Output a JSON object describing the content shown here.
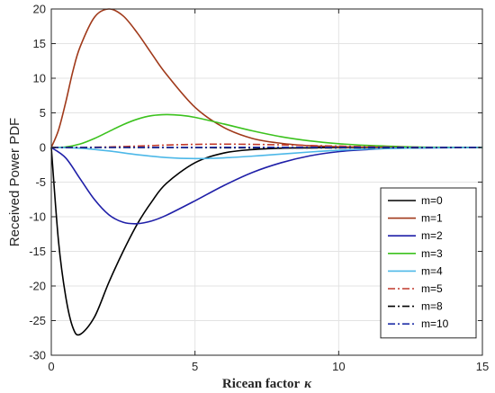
{
  "chart_data": {
    "type": "line",
    "title": "",
    "xlabel": "Ricean factor",
    "xlabel_symbol": "κ",
    "ylabel": "Received Power PDF",
    "xlim": [
      0,
      15
    ],
    "ylim": [
      -30,
      20
    ],
    "xticks": [
      0,
      5,
      10,
      15
    ],
    "yticks": [
      -30,
      -25,
      -20,
      -15,
      -10,
      -5,
      0,
      5,
      10,
      15,
      20
    ],
    "grid": true,
    "legend_position": "bottom-right",
    "series": [
      {
        "name": "m=0",
        "color": "#000000",
        "dash": "solid",
        "x": [
          0,
          0.25,
          0.5,
          0.75,
          1,
          1.5,
          2,
          2.5,
          3,
          3.5,
          4,
          5,
          6,
          7,
          8,
          9,
          10,
          12,
          15
        ],
        "y": [
          0,
          -13.5,
          -21.5,
          -26,
          -27,
          -24.5,
          -19.5,
          -15,
          -11,
          -7.8,
          -5.2,
          -2.2,
          -0.8,
          -0.3,
          -0.1,
          -0.05,
          0,
          0,
          0
        ]
      },
      {
        "name": "m=1",
        "color": "#a0391a",
        "dash": "solid",
        "x": [
          0,
          0.25,
          0.5,
          0.75,
          1,
          1.5,
          2,
          2.5,
          3,
          3.5,
          4,
          5,
          6,
          7,
          8,
          9,
          10,
          12,
          15
        ],
        "y": [
          0,
          2.5,
          6.5,
          11,
          14.5,
          18.8,
          20,
          19,
          16.5,
          13.5,
          10.6,
          5.8,
          2.9,
          1.3,
          0.6,
          0.25,
          0.1,
          0,
          0
        ]
      },
      {
        "name": "m=2",
        "color": "#1f1fa8",
        "dash": "solid",
        "x": [
          0,
          0.5,
          1,
          1.5,
          2,
          2.5,
          3,
          3.5,
          4,
          5,
          6,
          7,
          8,
          9,
          10,
          11,
          12,
          15
        ],
        "y": [
          0,
          -1.5,
          -4.5,
          -7.5,
          -9.7,
          -10.8,
          -11,
          -10.6,
          -9.8,
          -7.7,
          -5.5,
          -3.6,
          -2.2,
          -1.2,
          -0.6,
          -0.3,
          -0.1,
          0
        ]
      },
      {
        "name": "m=3",
        "color": "#3cc21e",
        "dash": "solid",
        "x": [
          0,
          0.5,
          1,
          1.5,
          2,
          2.5,
          3,
          3.5,
          4,
          4.5,
          5,
          6,
          7,
          8,
          9,
          10,
          11,
          12,
          13,
          15
        ],
        "y": [
          0,
          0.08,
          0.5,
          1.3,
          2.3,
          3.3,
          4.1,
          4.6,
          4.75,
          4.65,
          4.35,
          3.4,
          2.4,
          1.55,
          0.95,
          0.55,
          0.3,
          0.15,
          0.05,
          0
        ]
      },
      {
        "name": "m=4",
        "color": "#4db8e8",
        "dash": "solid",
        "x": [
          0,
          1,
          2,
          3,
          4,
          5,
          6,
          7,
          8,
          9,
          10,
          11,
          12,
          13,
          15
        ],
        "y": [
          0,
          -0.1,
          -0.5,
          -1.05,
          -1.45,
          -1.6,
          -1.5,
          -1.25,
          -0.95,
          -0.65,
          -0.4,
          -0.22,
          -0.12,
          -0.05,
          0
        ]
      },
      {
        "name": "m=5",
        "color": "#c0392b",
        "dash": "dashdot",
        "x": [
          0,
          1,
          2,
          3,
          4,
          5,
          6,
          7,
          8,
          9,
          10,
          11,
          12,
          13,
          15
        ],
        "y": [
          0,
          0.01,
          0.08,
          0.2,
          0.35,
          0.45,
          0.48,
          0.45,
          0.38,
          0.28,
          0.2,
          0.12,
          0.07,
          0.03,
          0
        ]
      },
      {
        "name": "m=8",
        "color": "#000000",
        "dash": "dashdot",
        "x": [
          0,
          2,
          4,
          6,
          8,
          10,
          12,
          15
        ],
        "y": [
          0,
          0,
          -0.01,
          -0.04,
          -0.06,
          -0.05,
          -0.03,
          0
        ]
      },
      {
        "name": "m=10",
        "color": "#1f2fa8",
        "dash": "dashdot",
        "x": [
          0,
          2,
          4,
          6,
          8,
          10,
          12,
          15
        ],
        "y": [
          0,
          0,
          0.005,
          0.02,
          0.03,
          0.03,
          0.02,
          0
        ]
      }
    ]
  }
}
